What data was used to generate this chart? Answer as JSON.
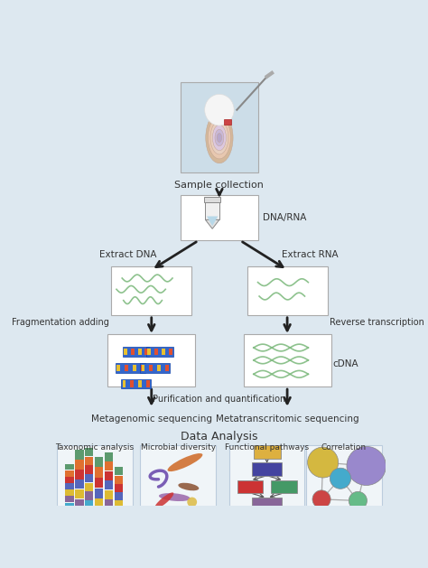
{
  "background_color": "#dde8f0",
  "box_color": "#ffffff",
  "box_edge": "#aaaaaa",
  "arrow_color": "#222222",
  "text_color": "#333333",
  "labels": {
    "sample_collection": "Sample collection",
    "dna_rna": "DNA/RNA",
    "extract_dna": "Extract DNA",
    "extract_rna": "Extract RNA",
    "fragmentation": "Fragmentation adding",
    "reverse": "Reverse transcription",
    "cdna": "cDNA",
    "purification": "Purification and quantification",
    "metagenomic": "Metagenomic sequencing",
    "metatranscriptomic": "Metatranscritomic sequencing",
    "data_analysis": "Data Analysis",
    "taxonomic": "Taxonomic analysis",
    "microbial": "Microbial diversity",
    "functional": "Functional pathways",
    "correlation": "Correlation"
  }
}
